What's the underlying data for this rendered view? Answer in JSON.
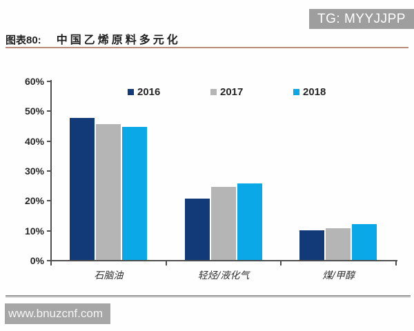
{
  "watermarks": {
    "top": "TG: MYYJJPP",
    "bottom": "www.bnuzcnf.com"
  },
  "header": {
    "figure_label": "图表80:",
    "title": "中国乙烯原料多元化"
  },
  "chart_data": {
    "type": "bar",
    "title": "中国乙烯原料多元化",
    "categories": [
      "石脑油",
      "轻烃/液化气",
      "煤/甲醇"
    ],
    "series": [
      {
        "name": "2016",
        "color": "#123a78",
        "values": [
          48,
          21,
          10.5
        ]
      },
      {
        "name": "2017",
        "color": "#b5b5b5",
        "values": [
          46,
          25,
          11
        ]
      },
      {
        "name": "2018",
        "color": "#0aa8e6",
        "values": [
          45,
          26,
          12.5
        ]
      }
    ],
    "ylim": [
      0,
      60
    ],
    "ytick_labels": [
      "60%",
      "50%",
      "40%",
      "30%",
      "20%",
      "10%",
      "0%"
    ],
    "ytick_values": [
      60,
      50,
      40,
      30,
      20,
      10,
      0
    ],
    "grid": false,
    "legend_position": "top"
  },
  "colors": {
    "axis": "#4d4d4d",
    "title_underline": "#bb8a76",
    "watermark_top_bg": "#9e9e9e",
    "watermark_bottom_bg": "#a6a6a6",
    "bottom_divider": "#9a9a9a"
  }
}
